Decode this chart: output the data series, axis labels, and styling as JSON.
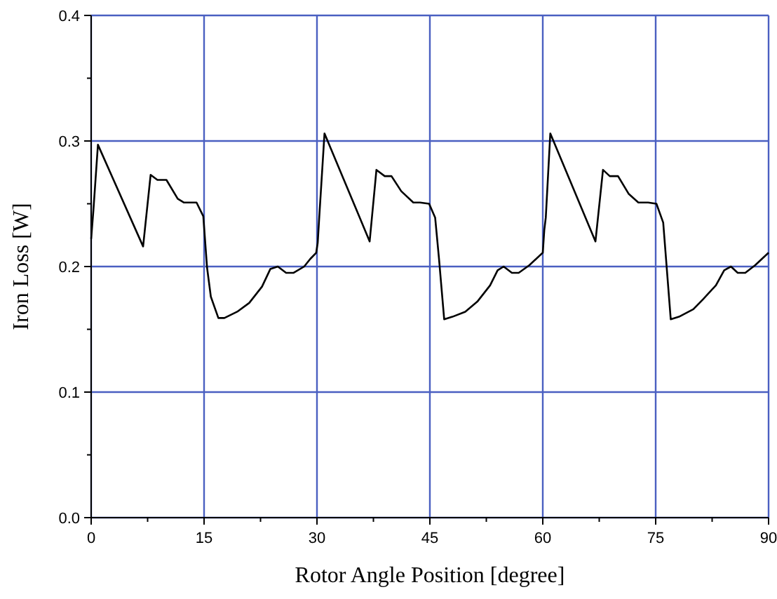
{
  "chart_data": {
    "type": "line",
    "xlabel": "Rotor Angle Position  [degree]",
    "ylabel": "Iron Loss [W]",
    "xlim": [
      0,
      90
    ],
    "ylim": [
      0,
      0.4
    ],
    "xticks": [
      0,
      {
        "value": 7.5,
        "label": null
      },
      15,
      {
        "value": 22.5,
        "label": null
      },
      30,
      {
        "value": 37.5,
        "label": null
      },
      45,
      {
        "value": 52.5,
        "label": null
      },
      60,
      {
        "value": 67.5,
        "label": null
      },
      75,
      {
        "value": 82.5,
        "label": null
      },
      90
    ],
    "yticks": [
      {
        "value": 0,
        "label": "0.0"
      },
      {
        "value": 0.05,
        "label": null
      },
      0.1,
      {
        "value": 0.15,
        "label": null
      },
      0.2,
      {
        "value": 0.25,
        "label": null
      },
      0.3,
      {
        "value": 0.35,
        "label": null
      },
      0.4
    ],
    "grid": true,
    "marker": "none",
    "line_style": "solid",
    "series": [
      {
        "color": "#000000",
        "x": [
          0,
          0.3,
          0.9,
          6.9,
          7.9,
          8.8,
          10,
          11.5,
          12.3,
          14,
          14.9,
          15.4,
          15.9,
          16.9,
          17.7,
          19.4,
          21,
          22.7,
          23.8,
          24.8,
          25.9,
          26.9,
          28.3,
          29.1,
          29.9,
          30.1,
          30.3,
          31,
          37,
          37.9,
          39,
          39.9,
          41.2,
          42.8,
          43.7,
          44.9,
          45.7,
          46.2,
          46.9,
          48,
          49.7,
          51.3,
          53,
          54,
          54.8,
          55.9,
          56.8,
          58.2,
          60,
          60.2,
          60.4,
          61,
          67,
          68,
          68.9,
          70,
          71.4,
          72.7,
          74,
          75.1,
          76,
          77,
          78.1,
          80,
          81.3,
          83,
          84.1,
          85,
          85.9,
          86.9,
          88.2,
          90
        ],
        "values": [
          0.222,
          0.245,
          0.297,
          0.216,
          0.273,
          0.269,
          0.269,
          0.254,
          0.251,
          0.251,
          0.24,
          0.199,
          0.176,
          0.159,
          0.159,
          0.164,
          0.171,
          0.184,
          0.198,
          0.2,
          0.195,
          0.195,
          0.2,
          0.206,
          0.211,
          0.219,
          0.239,
          0.306,
          0.22,
          0.277,
          0.272,
          0.272,
          0.26,
          0.251,
          0.251,
          0.25,
          0.239,
          0.207,
          0.158,
          0.16,
          0.164,
          0.172,
          0.185,
          0.197,
          0.2,
          0.195,
          0.195,
          0.201,
          0.211,
          0.229,
          0.239,
          0.306,
          0.22,
          0.277,
          0.272,
          0.272,
          0.258,
          0.251,
          0.251,
          0.25,
          0.235,
          0.158,
          0.16,
          0.166,
          0.174,
          0.185,
          0.197,
          0.2,
          0.195,
          0.195,
          0.201,
          0.211
        ]
      }
    ]
  }
}
